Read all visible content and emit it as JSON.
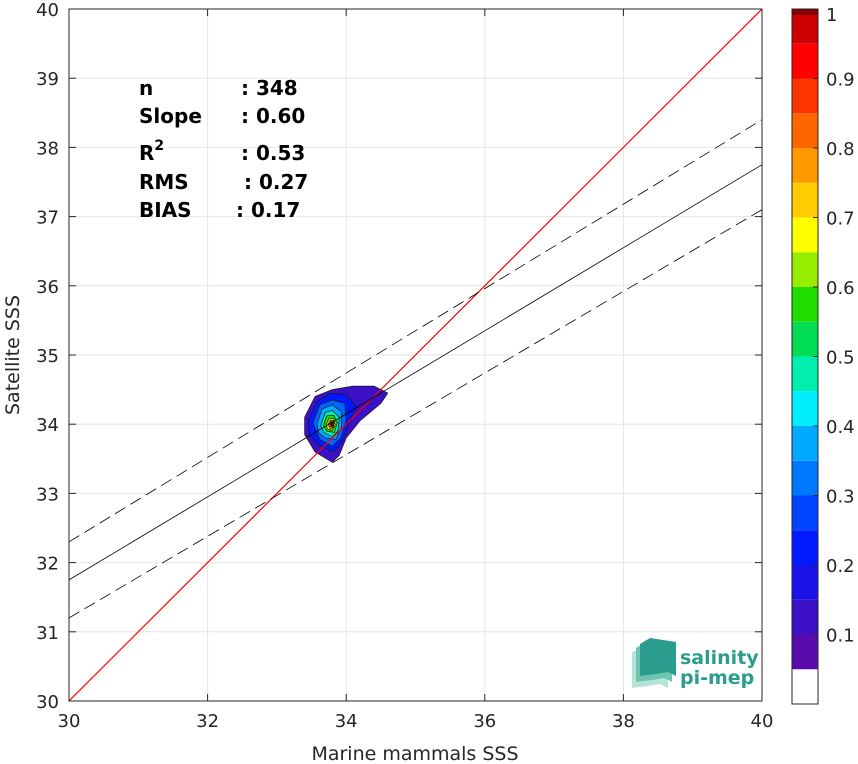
{
  "chart_data": {
    "type": "scatter",
    "subtype": "density-contour",
    "xlabel": "Marine mammals SSS",
    "ylabel": "Satellite SSS",
    "xlim": [
      30,
      40
    ],
    "ylim": [
      30,
      40
    ],
    "x_ticks": [
      "30",
      "32",
      "34",
      "36",
      "38",
      "40"
    ],
    "y_ticks": [
      "30",
      "31",
      "32",
      "33",
      "34",
      "35",
      "36",
      "37",
      "38",
      "39",
      "40"
    ],
    "grid": true,
    "stats": [
      {
        "label": "n",
        "sep": ": ",
        "value": "348"
      },
      {
        "label": "Slope",
        "sep": ": ",
        "value": "0.60"
      },
      {
        "label": "R",
        "sup": "2",
        "sep": ": ",
        "value": "0.53"
      },
      {
        "label": "RMS",
        "sep": ": ",
        "value": "0.27"
      },
      {
        "label": "BIAS",
        "sep": ": ",
        "value": "0.17"
      }
    ],
    "reference_lines": [
      {
        "kind": "identity",
        "color": "#ff0000",
        "points": [
          [
            30,
            30
          ],
          [
            40,
            40
          ]
        ]
      },
      {
        "kind": "fit",
        "color": "#000000",
        "dash": false,
        "points": [
          [
            30,
            31.75
          ],
          [
            40,
            37.75
          ]
        ]
      },
      {
        "kind": "fit-upper",
        "color": "#000000",
        "dash": true,
        "points": [
          [
            30,
            32.3
          ],
          [
            40,
            38.4
          ]
        ]
      },
      {
        "kind": "fit-lower",
        "color": "#000000",
        "dash": true,
        "points": [
          [
            30,
            31.2
          ],
          [
            40,
            37.1
          ]
        ]
      }
    ],
    "density_contours": [
      {
        "level": 0.05,
        "color": "#3b10c6",
        "points": [
          [
            33.4,
            34.1
          ],
          [
            33.55,
            34.4
          ],
          [
            33.8,
            34.5
          ],
          [
            34.1,
            34.55
          ],
          [
            34.4,
            34.55
          ],
          [
            34.6,
            34.45
          ],
          [
            34.5,
            34.3
          ],
          [
            34.2,
            34.05
          ],
          [
            34.0,
            33.8
          ],
          [
            33.9,
            33.55
          ],
          [
            33.8,
            33.45
          ],
          [
            33.55,
            33.6
          ],
          [
            33.4,
            33.85
          ]
        ]
      },
      {
        "level": 0.15,
        "color": "#0019ff",
        "points": [
          [
            33.45,
            34.05
          ],
          [
            33.58,
            34.33
          ],
          [
            33.78,
            34.45
          ],
          [
            34.0,
            34.43
          ],
          [
            34.15,
            34.25
          ],
          [
            34.05,
            34.05
          ],
          [
            33.95,
            33.75
          ],
          [
            33.82,
            33.6
          ],
          [
            33.6,
            33.7
          ],
          [
            33.47,
            33.85
          ]
        ]
      },
      {
        "level": 0.25,
        "color": "#0066ff",
        "points": [
          [
            33.52,
            34.02
          ],
          [
            33.62,
            34.28
          ],
          [
            33.8,
            34.35
          ],
          [
            33.98,
            34.3
          ],
          [
            34.0,
            34.05
          ],
          [
            33.92,
            33.8
          ],
          [
            33.8,
            33.68
          ],
          [
            33.62,
            33.78
          ]
        ]
      },
      {
        "level": 0.35,
        "color": "#00aaff",
        "points": [
          [
            33.58,
            34.0
          ],
          [
            33.65,
            34.22
          ],
          [
            33.8,
            34.28
          ],
          [
            33.93,
            34.18
          ],
          [
            33.93,
            33.95
          ],
          [
            33.85,
            33.78
          ],
          [
            33.7,
            33.8
          ],
          [
            33.6,
            33.88
          ]
        ]
      },
      {
        "level": 0.45,
        "color": "#00eeb0",
        "points": [
          [
            33.63,
            33.98
          ],
          [
            33.7,
            34.17
          ],
          [
            33.8,
            34.2
          ],
          [
            33.9,
            34.1
          ],
          [
            33.88,
            33.9
          ],
          [
            33.8,
            33.82
          ],
          [
            33.68,
            33.88
          ]
        ]
      },
      {
        "level": 0.55,
        "color": "#22dd00",
        "points": [
          [
            33.67,
            33.98
          ],
          [
            33.72,
            34.12
          ],
          [
            33.82,
            34.13
          ],
          [
            33.87,
            34.02
          ],
          [
            33.83,
            33.88
          ],
          [
            33.72,
            33.9
          ]
        ]
      },
      {
        "level": 0.65,
        "color": "#ffee00",
        "points": [
          [
            33.71,
            33.99
          ],
          [
            33.75,
            34.08
          ],
          [
            33.82,
            34.08
          ],
          [
            33.84,
            33.98
          ],
          [
            33.79,
            33.91
          ],
          [
            33.73,
            33.93
          ]
        ]
      },
      {
        "level": 0.75,
        "color": "#ff9900",
        "points": [
          [
            33.74,
            34.0
          ],
          [
            33.77,
            34.06
          ],
          [
            33.82,
            34.05
          ],
          [
            33.82,
            33.96
          ],
          [
            33.77,
            33.93
          ]
        ]
      },
      {
        "level": 0.85,
        "color": "#ff2200",
        "points": [
          [
            33.76,
            34.0
          ],
          [
            33.78,
            34.04
          ],
          [
            33.81,
            34.03
          ],
          [
            33.81,
            33.97
          ],
          [
            33.78,
            33.96
          ]
        ]
      },
      {
        "level": 0.95,
        "color": "#990000",
        "points": [
          [
            33.78,
            34.0
          ],
          [
            33.8,
            34.02
          ],
          [
            33.81,
            33.99
          ],
          [
            33.79,
            33.97
          ]
        ]
      }
    ],
    "colorbar": {
      "ticks": [
        "0.1",
        "0.2",
        "0.3",
        "0.4",
        "0.5",
        "0.6",
        "0.7",
        "0.8",
        "0.9",
        "1"
      ],
      "range": [
        0,
        1
      ],
      "bands": [
        {
          "from": 0.0,
          "to": 0.05,
          "color": "#ffffff"
        },
        {
          "from": 0.05,
          "to": 0.1,
          "color": "#5a0aaa"
        },
        {
          "from": 0.1,
          "to": 0.15,
          "color": "#3b10c6"
        },
        {
          "from": 0.15,
          "to": 0.2,
          "color": "#1a12e6"
        },
        {
          "from": 0.2,
          "to": 0.25,
          "color": "#0019ff"
        },
        {
          "from": 0.25,
          "to": 0.3,
          "color": "#0044ff"
        },
        {
          "from": 0.3,
          "to": 0.35,
          "color": "#0077ff"
        },
        {
          "from": 0.35,
          "to": 0.4,
          "color": "#00aaff"
        },
        {
          "from": 0.4,
          "to": 0.45,
          "color": "#00eeff"
        },
        {
          "from": 0.45,
          "to": 0.5,
          "color": "#00eeb0"
        },
        {
          "from": 0.5,
          "to": 0.55,
          "color": "#00dd55"
        },
        {
          "from": 0.55,
          "to": 0.6,
          "color": "#22dd00"
        },
        {
          "from": 0.6,
          "to": 0.65,
          "color": "#99ee00"
        },
        {
          "from": 0.65,
          "to": 0.7,
          "color": "#ffff00"
        },
        {
          "from": 0.7,
          "to": 0.75,
          "color": "#ffcc00"
        },
        {
          "from": 0.75,
          "to": 0.8,
          "color": "#ff9900"
        },
        {
          "from": 0.8,
          "to": 0.85,
          "color": "#ff6600"
        },
        {
          "from": 0.85,
          "to": 0.9,
          "color": "#ff3300"
        },
        {
          "from": 0.9,
          "to": 0.95,
          "color": "#ff0000"
        },
        {
          "from": 0.95,
          "to": 1.0,
          "color": "#cc0000"
        },
        {
          "from": 1.0,
          "to": 1.0,
          "color": "#880000"
        }
      ]
    }
  },
  "logo": {
    "line1": "salinity",
    "line2": "pi-mep"
  }
}
